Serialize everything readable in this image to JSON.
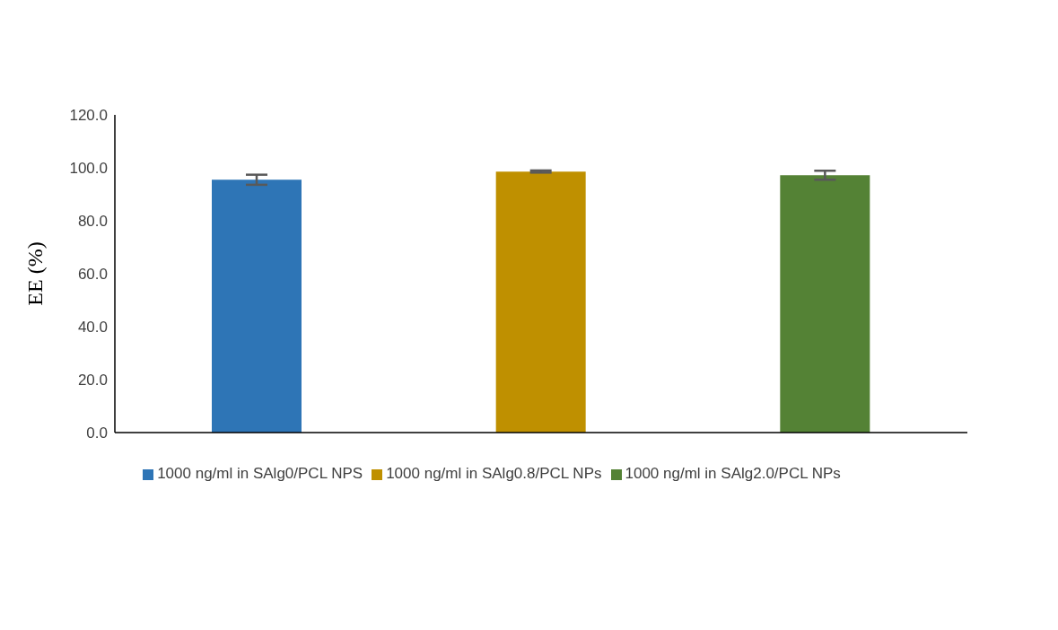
{
  "chart_data": {
    "type": "bar",
    "ylabel": "EE (%)",
    "categories": [
      null,
      null,
      null
    ],
    "series": [
      {
        "name": "1000 ng/ml in SAlg0/PCL NPS",
        "color": "#2e75b6",
        "values": [
          95.5,
          null,
          null
        ],
        "errors": [
          1.9,
          null,
          null
        ]
      },
      {
        "name": "1000 ng/ml in SAlg0.8/PCL NPs",
        "color": "#bf9000",
        "values": [
          null,
          98.6,
          null
        ],
        "errors": [
          null,
          0.4,
          null
        ]
      },
      {
        "name": "1000 ng/ml in SAlg2.0/PCL NPs",
        "color": "#548235",
        "values": [
          null,
          null,
          97.2
        ],
        "errors": [
          null,
          null,
          1.7
        ]
      }
    ],
    "ylim": [
      0,
      120
    ],
    "yticks": [
      {
        "value": 0,
        "label": "0.0"
      },
      {
        "value": 20,
        "label": "20.0"
      },
      {
        "value": 40,
        "label": "40.0"
      },
      {
        "value": 60,
        "label": "60.0"
      },
      {
        "value": 80,
        "label": "80.0"
      },
      {
        "value": 100,
        "label": "100.0"
      },
      {
        "value": 120,
        "label": "120.0"
      }
    ],
    "grid": false,
    "legend": "bottom"
  }
}
